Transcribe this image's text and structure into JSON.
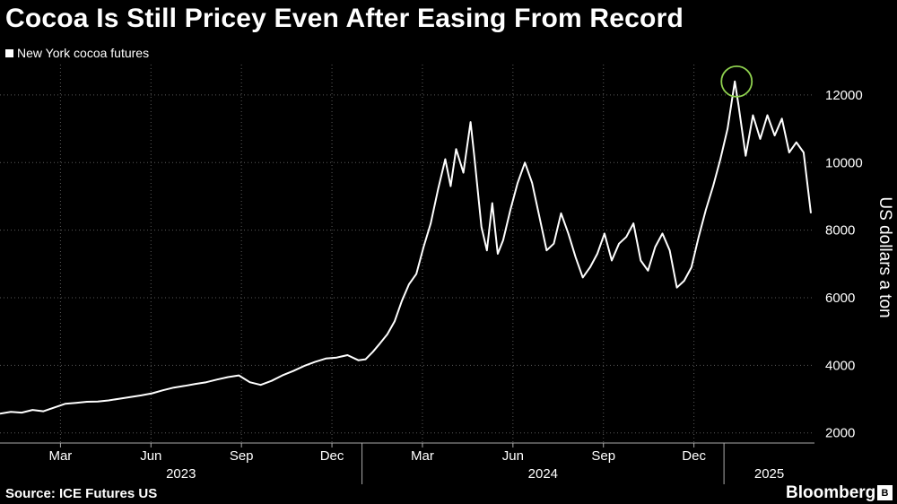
{
  "header": {
    "title": "Cocoa Is Still Pricey Even After Easing From Record",
    "legend_label": "New York cocoa futures"
  },
  "footer": {
    "source": "Source: ICE Futures US",
    "brand": "Bloomberg",
    "brand_badge": "B"
  },
  "colors": {
    "background": "#000000",
    "line": "#ffffff",
    "grid": "#5a5a5a",
    "highlight": "#8fd14f"
  },
  "chart_data": {
    "type": "line",
    "title": "Cocoa Is Still Pricey Even After Easing From Record",
    "ylabel": "US dollars a ton",
    "ylim": [
      1700,
      12900
    ],
    "yticks": [
      2000,
      4000,
      6000,
      8000,
      10000,
      12000
    ],
    "xlim": [
      2023.0,
      2025.25
    ],
    "month_ticks": [
      {
        "t": 2023.167,
        "label": "Mar"
      },
      {
        "t": 2023.417,
        "label": "Jun"
      },
      {
        "t": 2023.667,
        "label": "Sep"
      },
      {
        "t": 2023.917,
        "label": "Dec"
      },
      {
        "t": 2024.167,
        "label": "Mar"
      },
      {
        "t": 2024.417,
        "label": "Jun"
      },
      {
        "t": 2024.667,
        "label": "Sep"
      },
      {
        "t": 2024.917,
        "label": "Dec"
      }
    ],
    "year_labels": [
      {
        "t": 2023.5,
        "label": "2023"
      },
      {
        "t": 2024.5,
        "label": "2024"
      },
      {
        "t": 2025.125,
        "label": "2025"
      }
    ],
    "year_dividers": [
      2024.0,
      2025.0
    ],
    "series": [
      {
        "name": "New York cocoa futures",
        "points": [
          [
            2023.0,
            2570
          ],
          [
            2023.03,
            2620
          ],
          [
            2023.06,
            2600
          ],
          [
            2023.09,
            2680
          ],
          [
            2023.12,
            2640
          ],
          [
            2023.15,
            2750
          ],
          [
            2023.18,
            2860
          ],
          [
            2023.21,
            2890
          ],
          [
            2023.24,
            2920
          ],
          [
            2023.27,
            2930
          ],
          [
            2023.3,
            2960
          ],
          [
            2023.33,
            3010
          ],
          [
            2023.36,
            3060
          ],
          [
            2023.39,
            3110
          ],
          [
            2023.42,
            3170
          ],
          [
            2023.45,
            3260
          ],
          [
            2023.48,
            3340
          ],
          [
            2023.51,
            3390
          ],
          [
            2023.54,
            3450
          ],
          [
            2023.57,
            3500
          ],
          [
            2023.6,
            3580
          ],
          [
            2023.63,
            3650
          ],
          [
            2023.66,
            3700
          ],
          [
            2023.69,
            3500
          ],
          [
            2023.72,
            3420
          ],
          [
            2023.75,
            3540
          ],
          [
            2023.78,
            3700
          ],
          [
            2023.81,
            3830
          ],
          [
            2023.84,
            3980
          ],
          [
            2023.87,
            4100
          ],
          [
            2023.9,
            4200
          ],
          [
            2023.93,
            4230
          ],
          [
            2023.96,
            4300
          ],
          [
            2023.99,
            4150
          ],
          [
            2024.01,
            4180
          ],
          [
            2024.03,
            4400
          ],
          [
            2024.05,
            4650
          ],
          [
            2024.07,
            4920
          ],
          [
            2024.09,
            5300
          ],
          [
            2024.11,
            5900
          ],
          [
            2024.13,
            6400
          ],
          [
            2024.15,
            6700
          ],
          [
            2024.17,
            7500
          ],
          [
            2024.19,
            8200
          ],
          [
            2024.21,
            9200
          ],
          [
            2024.23,
            10100
          ],
          [
            2024.245,
            9300
          ],
          [
            2024.26,
            10400
          ],
          [
            2024.28,
            9700
          ],
          [
            2024.3,
            11200
          ],
          [
            2024.31,
            10200
          ],
          [
            2024.33,
            8100
          ],
          [
            2024.345,
            7400
          ],
          [
            2024.36,
            8800
          ],
          [
            2024.375,
            7300
          ],
          [
            2024.39,
            7700
          ],
          [
            2024.41,
            8600
          ],
          [
            2024.43,
            9400
          ],
          [
            2024.45,
            10000
          ],
          [
            2024.47,
            9400
          ],
          [
            2024.49,
            8400
          ],
          [
            2024.51,
            7400
          ],
          [
            2024.53,
            7600
          ],
          [
            2024.55,
            8500
          ],
          [
            2024.57,
            7900
          ],
          [
            2024.59,
            7200
          ],
          [
            2024.61,
            6600
          ],
          [
            2024.63,
            6900
          ],
          [
            2024.65,
            7300
          ],
          [
            2024.67,
            7900
          ],
          [
            2024.69,
            7100
          ],
          [
            2024.71,
            7600
          ],
          [
            2024.73,
            7800
          ],
          [
            2024.75,
            8200
          ],
          [
            2024.77,
            7100
          ],
          [
            2024.79,
            6800
          ],
          [
            2024.81,
            7500
          ],
          [
            2024.83,
            7900
          ],
          [
            2024.85,
            7400
          ],
          [
            2024.87,
            6300
          ],
          [
            2024.89,
            6500
          ],
          [
            2024.91,
            6900
          ],
          [
            2024.93,
            7800
          ],
          [
            2024.95,
            8600
          ],
          [
            2024.97,
            9300
          ],
          [
            2024.99,
            10100
          ],
          [
            2025.01,
            11000
          ],
          [
            2025.03,
            12400
          ],
          [
            2025.04,
            11700
          ],
          [
            2025.06,
            10200
          ],
          [
            2025.08,
            11400
          ],
          [
            2025.1,
            10700
          ],
          [
            2025.12,
            11400
          ],
          [
            2025.14,
            10800
          ],
          [
            2025.16,
            11300
          ],
          [
            2025.18,
            10300
          ],
          [
            2025.2,
            10600
          ],
          [
            2025.22,
            10300
          ],
          [
            2025.24,
            8500
          ]
        ]
      }
    ],
    "annotations": [
      {
        "type": "circle",
        "t": 2025.035,
        "value": 12400,
        "label": "record high"
      }
    ]
  }
}
